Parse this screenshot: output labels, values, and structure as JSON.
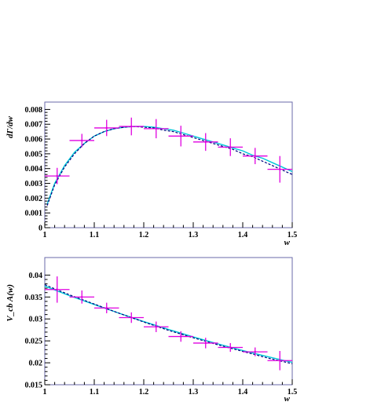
{
  "chart_data": [
    {
      "type": "scatter",
      "title": "",
      "xlabel": "w",
      "ylabel": "dΓ/dw",
      "xlim": [
        1.0,
        1.5
      ],
      "ylim": [
        0,
        0.0085
      ],
      "x_ticks": [
        "1",
        "1.1",
        "1.2",
        "1.3",
        "1.4",
        "1.5"
      ],
      "y_ticks": [
        "0",
        "0.001",
        "0.002",
        "0.003",
        "0.004",
        "0.005",
        "0.006",
        "0.007",
        "0.008"
      ],
      "grid": false,
      "colors": {
        "data": "#e000e0",
        "fit_solid": "#00c8d8",
        "fit_dashed": "#000080"
      },
      "series": [
        {
          "kind": "points_with_errors",
          "x": [
            1.025,
            1.075,
            1.125,
            1.175,
            1.225,
            1.275,
            1.325,
            1.375,
            1.425,
            1.475
          ],
          "y": [
            0.0035,
            0.0059,
            0.00675,
            0.00685,
            0.0067,
            0.0062,
            0.0058,
            0.00545,
            0.00485,
            0.00395
          ],
          "xerr": [
            0.025,
            0.025,
            0.025,
            0.025,
            0.025,
            0.025,
            0.025,
            0.025,
            0.025,
            0.025
          ],
          "yerr": [
            0.00055,
            0.00045,
            0.00055,
            0.0006,
            0.00065,
            0.0007,
            0.0006,
            0.0006,
            0.00055,
            0.0009
          ]
        },
        {
          "kind": "curve_solid",
          "x": [
            1.005,
            1.02,
            1.04,
            1.06,
            1.08,
            1.1,
            1.12,
            1.14,
            1.16,
            1.18,
            1.2,
            1.22,
            1.24,
            1.26,
            1.28,
            1.3,
            1.32,
            1.34,
            1.36,
            1.38,
            1.4,
            1.42,
            1.44,
            1.46,
            1.48,
            1.5
          ],
          "y": [
            0.0016,
            0.003,
            0.0042,
            0.0051,
            0.0057,
            0.0062,
            0.0065,
            0.0067,
            0.0068,
            0.00685,
            0.00685,
            0.0068,
            0.0067,
            0.0066,
            0.0064,
            0.0062,
            0.006,
            0.0058,
            0.0056,
            0.0054,
            0.0052,
            0.0049,
            0.0047,
            0.0044,
            0.0041,
            0.0038
          ]
        },
        {
          "kind": "curve_dashed",
          "x": [
            1.005,
            1.02,
            1.04,
            1.06,
            1.08,
            1.1,
            1.12,
            1.14,
            1.16,
            1.18,
            1.2,
            1.22,
            1.24,
            1.26,
            1.28,
            1.3,
            1.32,
            1.34,
            1.36,
            1.38,
            1.4,
            1.42,
            1.44,
            1.46,
            1.48,
            1.5
          ],
          "y": [
            0.0015,
            0.0029,
            0.0041,
            0.005,
            0.0057,
            0.0062,
            0.0065,
            0.0067,
            0.0068,
            0.00685,
            0.0068,
            0.00675,
            0.0066,
            0.0065,
            0.0063,
            0.0061,
            0.0059,
            0.0057,
            0.0055,
            0.0053,
            0.005,
            0.0048,
            0.0045,
            0.0042,
            0.0039,
            0.0036
          ]
        }
      ]
    },
    {
      "type": "scatter",
      "title": "",
      "xlabel": "w",
      "ylabel": "V_cb A(w)",
      "xlim": [
        1.0,
        1.5
      ],
      "ylim": [
        0.015,
        0.044
      ],
      "x_ticks": [
        "1",
        "1.1",
        "1.2",
        "1.3",
        "1.4",
        "1.5"
      ],
      "y_ticks": [
        "0.015",
        "0.02",
        "0.025",
        "0.03",
        "0.035",
        "0.04"
      ],
      "grid": false,
      "colors": {
        "data": "#e000e0",
        "fit_solid": "#00c8d8",
        "fit_dashed": "#000080"
      },
      "series": [
        {
          "kind": "points_with_errors",
          "x": [
            1.025,
            1.075,
            1.125,
            1.175,
            1.225,
            1.275,
            1.325,
            1.375,
            1.425,
            1.475
          ],
          "y": [
            0.0367,
            0.035,
            0.0325,
            0.0303,
            0.0282,
            0.026,
            0.0245,
            0.0235,
            0.0225,
            0.0205
          ],
          "xerr": [
            0.025,
            0.025,
            0.025,
            0.025,
            0.025,
            0.025,
            0.025,
            0.025,
            0.025,
            0.025
          ],
          "yerr": [
            0.003,
            0.0015,
            0.0012,
            0.0012,
            0.0012,
            0.0012,
            0.0012,
            0.001,
            0.001,
            0.0022
          ]
        },
        {
          "kind": "curve_solid",
          "x": [
            1.0,
            1.05,
            1.1,
            1.15,
            1.2,
            1.25,
            1.3,
            1.35,
            1.4,
            1.45,
            1.5
          ],
          "y": [
            0.0375,
            0.0353,
            0.0333,
            0.0313,
            0.0294,
            0.0276,
            0.0259,
            0.0243,
            0.0228,
            0.0214,
            0.0201
          ]
        },
        {
          "kind": "curve_dashed",
          "x": [
            1.0,
            1.05,
            1.1,
            1.15,
            1.2,
            1.25,
            1.3,
            1.35,
            1.4,
            1.45,
            1.5
          ],
          "y": [
            0.0378,
            0.0355,
            0.0334,
            0.0313,
            0.0293,
            0.0274,
            0.0257,
            0.0241,
            0.0226,
            0.0211,
            0.0198
          ]
        }
      ]
    }
  ]
}
